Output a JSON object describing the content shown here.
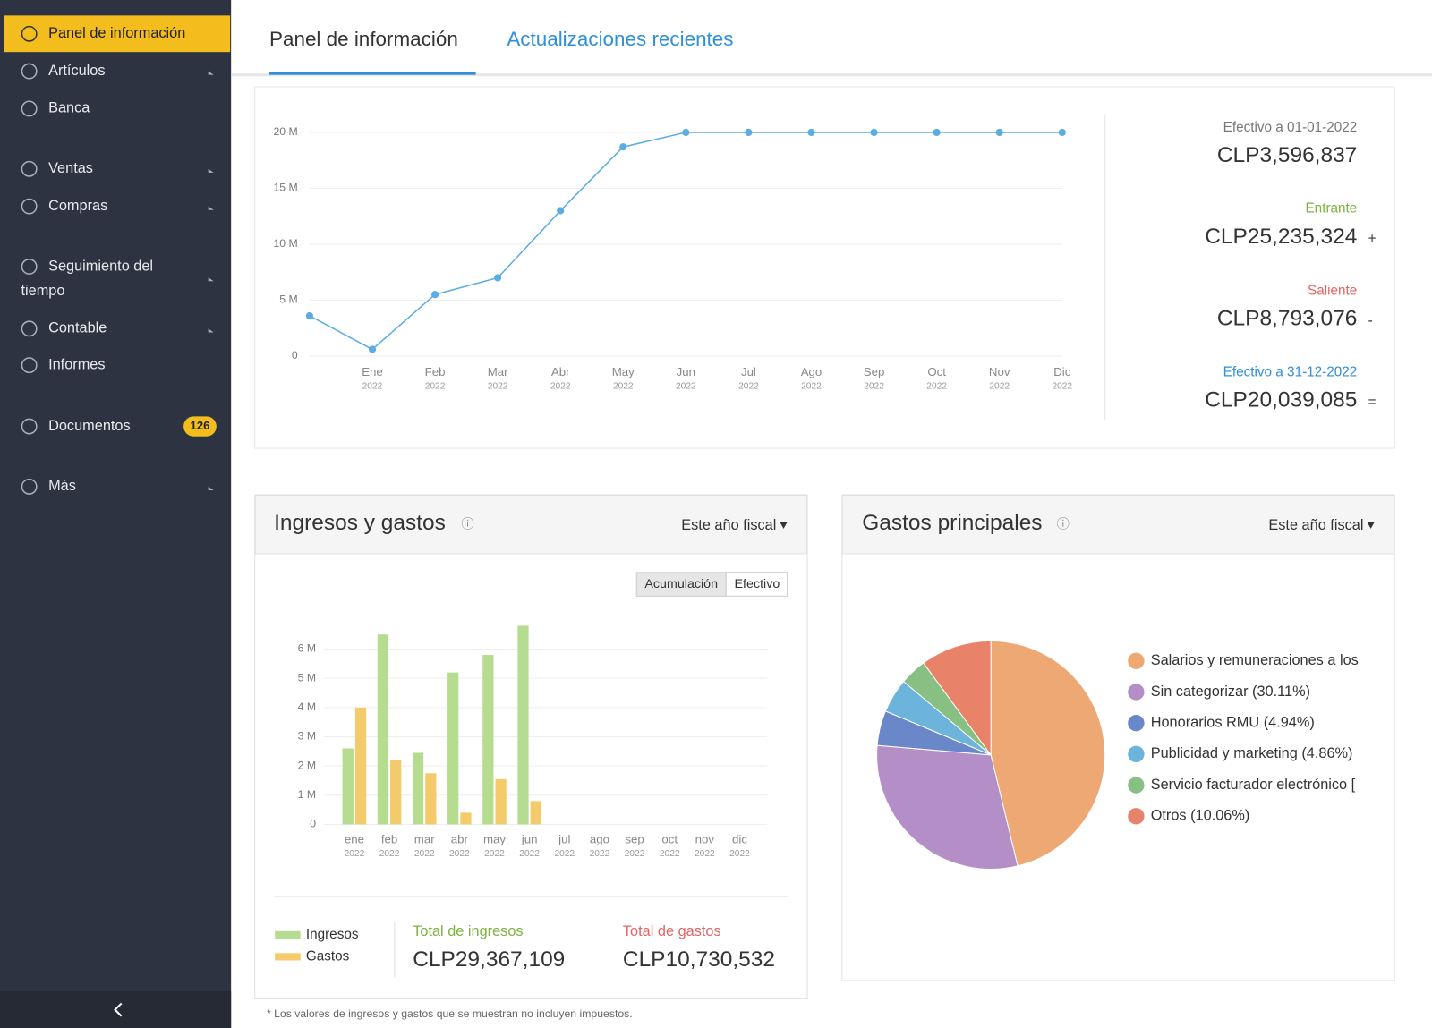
{
  "sidebar": {
    "items": [
      {
        "label_lines": [
          "Panel de información"
        ],
        "active": true,
        "has_submenu": false
      },
      {
        "label_lines": [
          "Artículos"
        ],
        "active": false,
        "has_submenu": true
      },
      {
        "label_lines": [
          "Banca"
        ],
        "active": false,
        "has_submenu": false
      },
      {
        "label_lines": [
          "Ventas"
        ],
        "active": false,
        "has_submenu": true
      },
      {
        "label_lines": [
          "Compras"
        ],
        "active": false,
        "has_submenu": true
      },
      {
        "label_lines": [
          "Seguimiento del",
          "tiempo"
        ],
        "active": false,
        "has_submenu": true
      },
      {
        "label_lines": [
          "Contable"
        ],
        "active": false,
        "has_submenu": true
      },
      {
        "label_lines": [
          "Informes"
        ],
        "active": false,
        "has_submenu": false
      },
      {
        "label_lines": [
          "Documentos"
        ],
        "active": false,
        "has_submenu": false,
        "badge": 126
      },
      {
        "label_lines": [
          "Más"
        ],
        "active": false,
        "has_submenu": true
      }
    ]
  },
  "tabs": [
    {
      "label": "Panel de información",
      "active": true
    },
    {
      "label": "Actualizaciones recientes",
      "active": false
    }
  ],
  "cash_summary": [
    {
      "label": "Efectivo a 01-01-2022",
      "value": "CLP3,596,837",
      "color": "#777777"
    },
    {
      "label": "Entrante",
      "value": "CLP25,235,324",
      "sign": "+",
      "color": "#7cb342"
    },
    {
      "label": "Saliente",
      "value": "CLP8,793,076",
      "sign": "-",
      "color": "#e06666"
    },
    {
      "label": "Efectivo a 31-12-2022",
      "value": "CLP20,039,085",
      "sign": "=",
      "color": "#2f8fd8"
    }
  ],
  "chart_data": [
    {
      "type": "line",
      "categories": [
        null,
        "Ene",
        "Feb",
        "Mar",
        "Abr",
        "May",
        "Jun",
        "Jul",
        "Ago",
        "Sep",
        "Oct",
        "Nov",
        "Dic"
      ],
      "category_years": [
        null,
        "2022",
        "2022",
        "2022",
        "2022",
        "2022",
        "2022",
        "2022",
        "2022",
        "2022",
        "2022",
        "2022",
        "2022"
      ],
      "values": [
        3600000,
        600000,
        5500000,
        7000000,
        13000000,
        18700000,
        20000000,
        20000000,
        20000000,
        20000000,
        20000000,
        20000000,
        20000000
      ],
      "color": "#5aade0",
      "ylim": [
        0,
        20000000
      ],
      "yticks": [
        0,
        {
          "value": 5000000,
          "label": "5 M"
        },
        {
          "value": 10000000,
          "label": "10 M"
        },
        {
          "value": 15000000,
          "label": "15 M"
        },
        {
          "value": 20000000,
          "label": "20 M"
        }
      ],
      "grid": true
    },
    {
      "type": "bar",
      "title": "Ingresos y gastos",
      "period": "Este año fiscal",
      "toggle": [
        "Acumulación",
        "Efectivo"
      ],
      "categories": [
        "ene",
        "feb",
        "mar",
        "abr",
        "may",
        "jun",
        "jul",
        "ago",
        "sep",
        "oct",
        "nov",
        "dic"
      ],
      "category_years": [
        "2022",
        "2022",
        "2022",
        "2022",
        "2022",
        "2022",
        "2022",
        "2022",
        "2022",
        "2022",
        "2022",
        "2022"
      ],
      "series": [
        {
          "name": "Ingresos",
          "color": "#b5dc8f",
          "values": [
            2600000,
            6500000,
            2450000,
            5200000,
            5800000,
            6800000,
            0,
            0,
            0,
            0,
            0,
            0
          ]
        },
        {
          "name": "Gastos",
          "color": "#f4cb6b",
          "values": [
            4000000,
            2200000,
            1750000,
            400000,
            1550000,
            800000,
            0,
            0,
            0,
            0,
            0,
            0
          ]
        }
      ],
      "ylim": [
        0,
        7000000
      ],
      "yticks": [
        0,
        {
          "value": 1000000,
          "label": "1 M"
        },
        {
          "value": 2000000,
          "label": "2 M"
        },
        {
          "value": 3000000,
          "label": "3 M"
        },
        {
          "value": 4000000,
          "label": "4 M"
        },
        {
          "value": 5000000,
          "label": "5 M"
        },
        {
          "value": 6000000,
          "label": "6 M"
        }
      ],
      "grid": true,
      "totals": [
        {
          "label": "Total de ingresos",
          "value": "CLP29,367,109",
          "color": "#7cb342"
        },
        {
          "label": "Total de gastos",
          "value": "CLP10,730,532",
          "color": "#e06666"
        }
      ],
      "footnote": "* Los valores de ingresos y gastos que se muestran no incluyen impuestos."
    },
    {
      "type": "pie",
      "title": "Gastos principales",
      "period": "Este año fiscal",
      "categories": [
        "Salarios y remuneraciones a los",
        "Sin categorizar (30.11%)",
        "Honorarios RMU (4.94%)",
        "Publicidad y marketing (4.86%)",
        "Servicio facturador electrónico [",
        "Otros (10.06%)"
      ],
      "values": [
        46.23,
        30.11,
        4.94,
        4.86,
        3.8,
        10.06
      ],
      "colors": [
        "#eda874",
        "#b48ec6",
        "#6a88c9",
        "#6cb4dc",
        "#88c083",
        "#e8836a"
      ]
    }
  ]
}
